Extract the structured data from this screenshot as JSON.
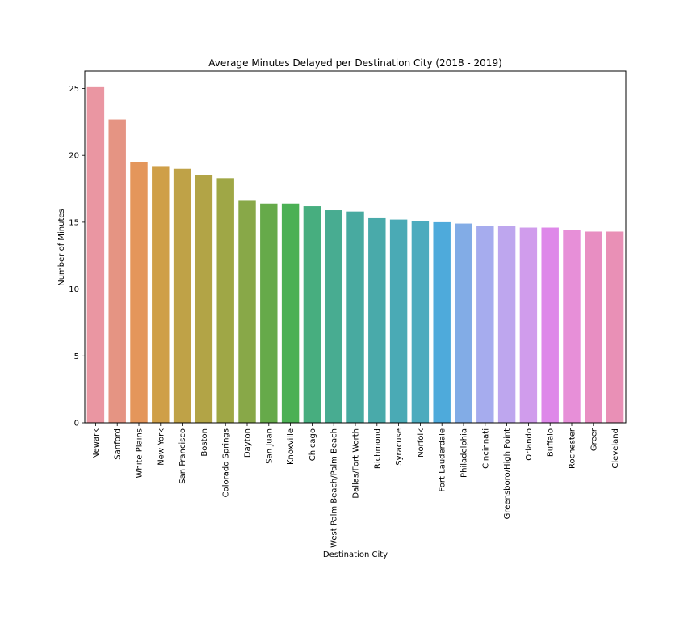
{
  "chart_data": {
    "type": "bar",
    "title": "Average Minutes Delayed per Destination City (2018 - 2019)",
    "xlabel": "Destination City",
    "ylabel": "Number of Minutes",
    "ylim": [
      0,
      26.3
    ],
    "yticks": [
      0,
      5,
      10,
      15,
      20,
      25
    ],
    "grid": false,
    "categories": [
      "Newark",
      "Sanford",
      "White Plains",
      "New York",
      "San Francisco",
      "Boston",
      "Colorado Springs",
      "Dayton",
      "San Juan",
      "Knoxville",
      "Chicago",
      "West Palm Beach/Palm Beach",
      "Dallas/Fort Worth",
      "Richmond",
      "Syracuse",
      "Norfolk",
      "Fort Lauderdale",
      "Philadelphia",
      "Cincinnati",
      "Greensboro/High Point",
      "Orlando",
      "Buffalo",
      "Rochester",
      "Greer",
      "Cleveland"
    ],
    "values": [
      25.1,
      22.7,
      19.5,
      19.2,
      19.0,
      18.5,
      18.3,
      16.6,
      16.4,
      16.4,
      16.2,
      15.9,
      15.8,
      15.3,
      15.2,
      15.1,
      15.0,
      14.9,
      14.7,
      14.7,
      14.6,
      14.6,
      14.4,
      14.3,
      14.3
    ],
    "colors": [
      "#ea96a2",
      "#e59483",
      "#e4965b",
      "#cf9f48",
      "#bfa247",
      "#b2a446",
      "#9fa746",
      "#88a848",
      "#66aa4a",
      "#4bb054",
      "#47ae7f",
      "#48ac91",
      "#48aaa0",
      "#49aaaa",
      "#4aaab5",
      "#4cabbe",
      "#4eaadb",
      "#82ace6",
      "#a6acee",
      "#bea6ee",
      "#d09cec",
      "#de88e9",
      "#e78fd8",
      "#e88ec2",
      "#e990b6"
    ]
  }
}
